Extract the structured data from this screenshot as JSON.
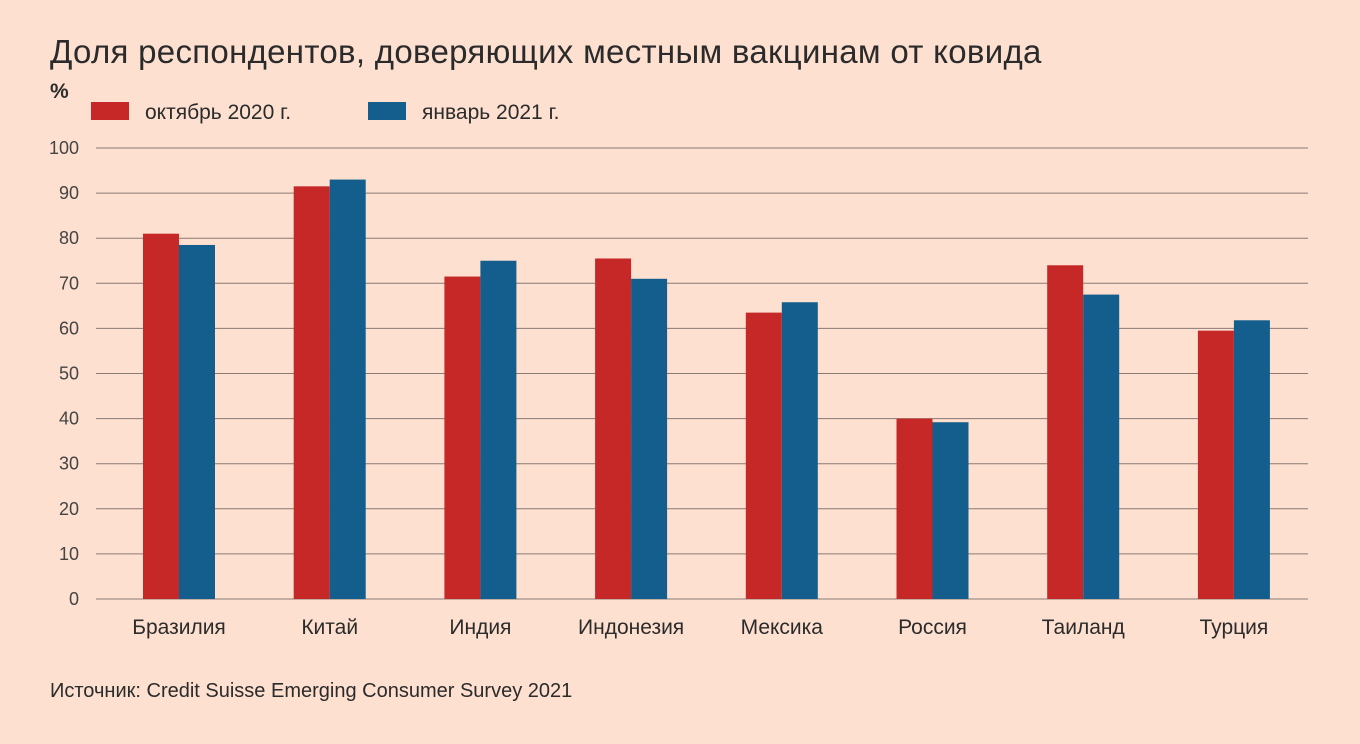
{
  "chart_data": {
    "type": "bar",
    "title": "Доля респондентов, доверяющих местным вакцинам от ковида",
    "unit_label": "%",
    "ylim": [
      0,
      100
    ],
    "yticks": [
      0,
      10,
      20,
      30,
      40,
      50,
      60,
      70,
      80,
      90,
      100
    ],
    "grid": true,
    "legend_placement": "top-left",
    "categories": [
      "Бразилия",
      "Китай",
      "Индия",
      "Индонезия",
      "Мексика",
      "Россия",
      "Таиланд",
      "Турция"
    ],
    "series": [
      {
        "name": "октябрь 2020 г.",
        "color": "#c62828",
        "values": [
          81,
          91.5,
          71.5,
          75.5,
          63.5,
          40,
          74,
          59.5
        ]
      },
      {
        "name": "январь 2021 г.",
        "color": "#135e8c",
        "values": [
          78.5,
          93,
          75,
          71,
          65.8,
          39.2,
          67.5,
          61.8
        ]
      }
    ],
    "source": "Источник: Credit Suisse Emerging Consumer Survey 2021"
  }
}
